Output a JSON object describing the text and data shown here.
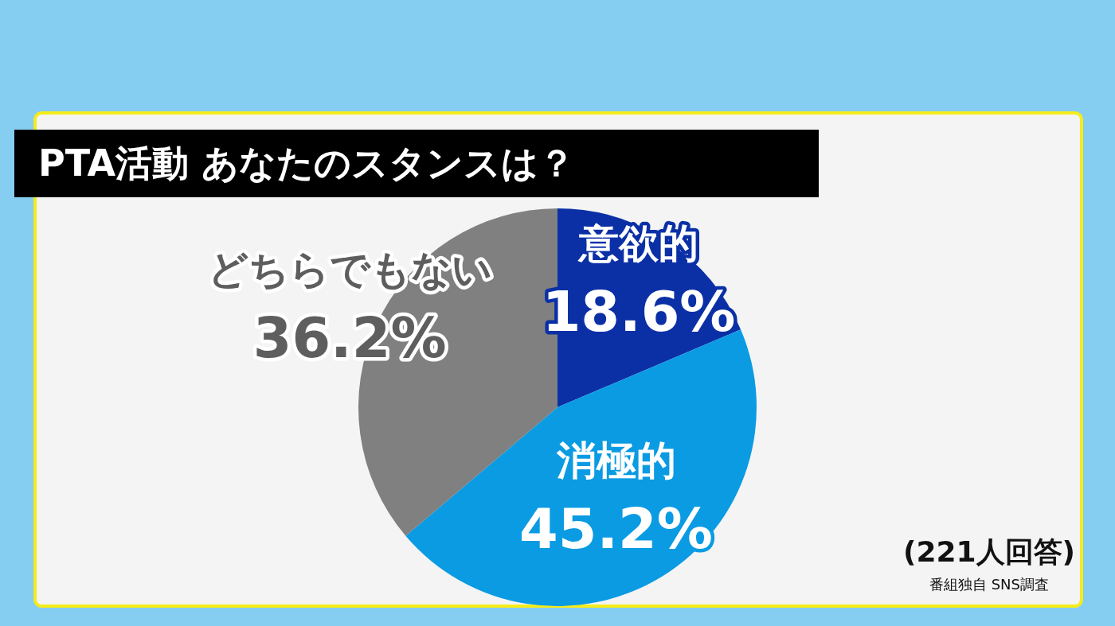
{
  "chart_data": {
    "type": "pie",
    "title": "PTA活動 あなたのスタンスは？",
    "categories": [
      "意欲的",
      "消極的",
      "どちらでもない"
    ],
    "values": [
      18.6,
      45.2,
      36.2
    ],
    "value_labels": [
      "18.6%",
      "45.2%",
      "36.2%"
    ],
    "colors": [
      "#0b30a6",
      "#0a9be3",
      "#808080"
    ],
    "legend": false,
    "annotations": [
      "(221人回答)",
      "番組独自 SNS調査"
    ]
  }
}
